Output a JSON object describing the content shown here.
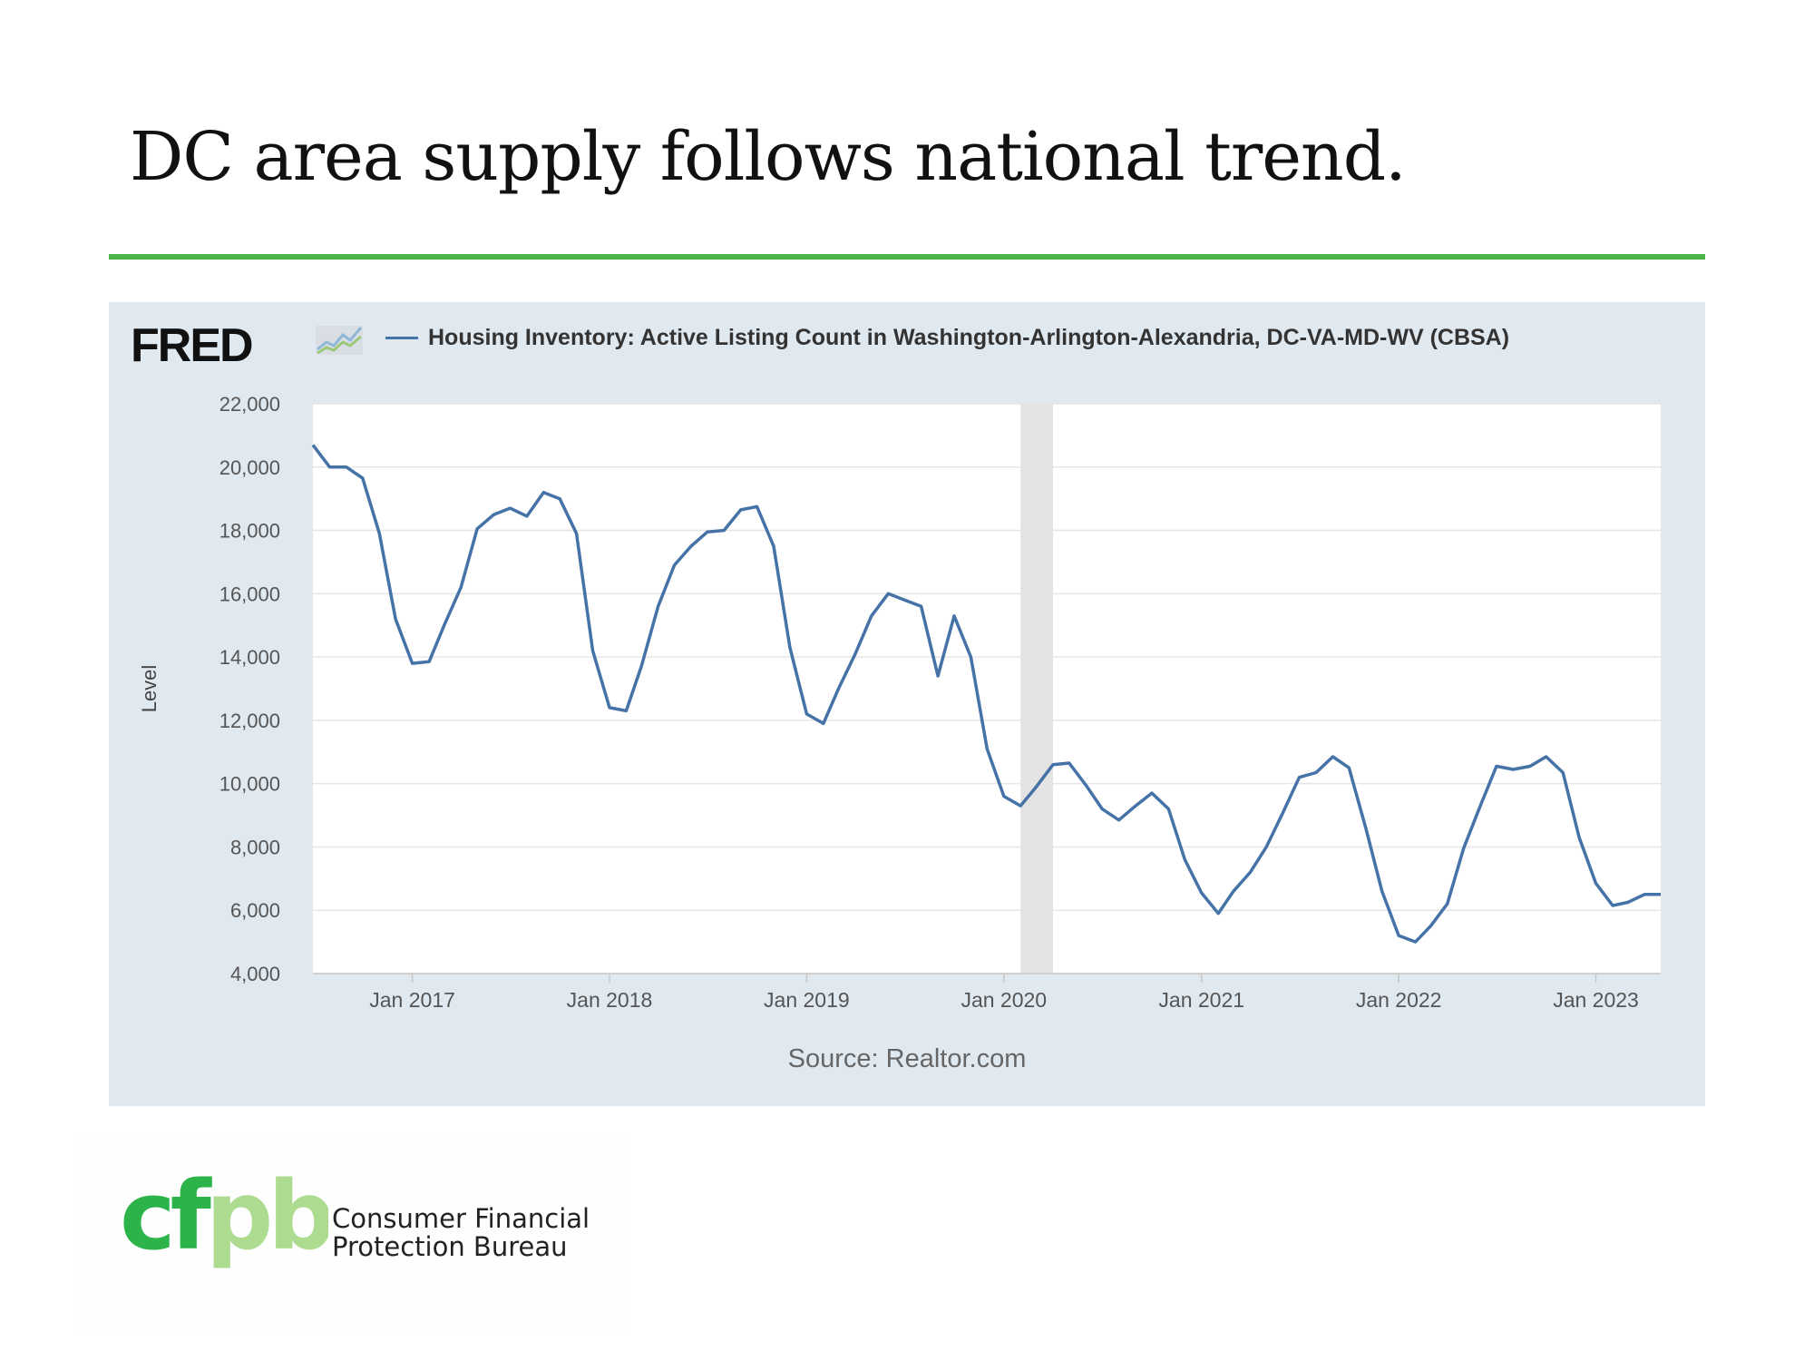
{
  "slide": {
    "title": "DC area supply follows national trend."
  },
  "colors": {
    "rule_green": "#4bb548",
    "series_blue": "#4572a7",
    "recession_gray": "#e3e3e3",
    "cfpb_green_dark": "#2cb34a",
    "cfpb_green_light": "#addc91"
  },
  "fred": {
    "logo_text": "FRED",
    "logo_icon": "fred-chart-icon",
    "legend_text": "Housing Inventory: Active Listing Count in Washington-Arlington-Alexandria, DC-VA-MD-WV (CBSA)",
    "source_text": "Source: Realtor.com"
  },
  "chart_data": {
    "type": "line",
    "title": "",
    "xlabel": "",
    "ylabel": "Level",
    "ylim": [
      4000,
      22000
    ],
    "yticks": [
      4000,
      6000,
      8000,
      10000,
      12000,
      14000,
      16000,
      18000,
      20000,
      22000
    ],
    "ytick_labels": [
      "4,000",
      "6,000",
      "8,000",
      "10,000",
      "12,000",
      "14,000",
      "16,000",
      "18,000",
      "20,000",
      "22,000"
    ],
    "xlim": [
      "2016-07-01",
      "2023-05-01"
    ],
    "xticks": [
      "2017-01-01",
      "2018-01-01",
      "2019-01-01",
      "2020-01-01",
      "2021-01-01",
      "2022-01-01",
      "2023-01-01"
    ],
    "xtick_labels": [
      "Jan 2017",
      "Jan 2018",
      "Jan 2019",
      "Jan 2020",
      "Jan 2021",
      "Jan 2022",
      "Jan 2023"
    ],
    "grid": true,
    "legend": "top",
    "shaded_regions": [
      {
        "start": "2020-02-01",
        "end": "2020-04-01"
      }
    ],
    "series": [
      {
        "name": "Housing Inventory: Active Listing Count in Washington-Arlington-Alexandria, DC-VA-MD-WV (CBSA)",
        "x": [
          "2016-07-01",
          "2016-08-01",
          "2016-09-01",
          "2016-10-01",
          "2016-11-01",
          "2016-12-01",
          "2017-01-01",
          "2017-02-01",
          "2017-03-01",
          "2017-04-01",
          "2017-05-01",
          "2017-06-01",
          "2017-07-01",
          "2017-08-01",
          "2017-09-01",
          "2017-10-01",
          "2017-11-01",
          "2017-12-01",
          "2018-01-01",
          "2018-02-01",
          "2018-03-01",
          "2018-04-01",
          "2018-05-01",
          "2018-06-01",
          "2018-07-01",
          "2018-08-01",
          "2018-09-01",
          "2018-10-01",
          "2018-11-01",
          "2018-12-01",
          "2019-01-01",
          "2019-02-01",
          "2019-03-01",
          "2019-04-01",
          "2019-05-01",
          "2019-06-01",
          "2019-07-01",
          "2019-08-01",
          "2019-09-01",
          "2019-10-01",
          "2019-11-01",
          "2019-12-01",
          "2020-01-01",
          "2020-02-01",
          "2020-03-01",
          "2020-04-01",
          "2020-05-01",
          "2020-06-01",
          "2020-07-01",
          "2020-08-01",
          "2020-09-01",
          "2020-10-01",
          "2020-11-01",
          "2020-12-01",
          "2021-01-01",
          "2021-02-01",
          "2021-03-01",
          "2021-04-01",
          "2021-05-01",
          "2021-06-01",
          "2021-07-01",
          "2021-08-01",
          "2021-09-01",
          "2021-10-01",
          "2021-11-01",
          "2021-12-01",
          "2022-01-01",
          "2022-02-01",
          "2022-03-01",
          "2022-04-01",
          "2022-05-01",
          "2022-06-01",
          "2022-07-01",
          "2022-08-01",
          "2022-09-01",
          "2022-10-01",
          "2022-11-01",
          "2022-12-01",
          "2023-01-01",
          "2023-02-01",
          "2023-03-01",
          "2023-04-01",
          "2023-05-01"
        ],
        "values": [
          20700,
          20000,
          20000,
          19650,
          17900,
          15200,
          13800,
          13850,
          15000,
          16200,
          18050,
          18500,
          18700,
          18450,
          19200,
          19000,
          17900,
          14200,
          12400,
          12300,
          13700,
          15600,
          16900,
          17500,
          17950,
          18000,
          18650,
          18750,
          17500,
          14300,
          12200,
          11900,
          13000,
          14100,
          15300,
          16000,
          15800,
          15600,
          13400,
          15300,
          14000,
          11100,
          9600,
          9300,
          9900,
          10600,
          10650,
          9950,
          9200,
          8850,
          9300,
          9700,
          9200,
          7600,
          6550,
          5900,
          6600,
          7200,
          8000,
          9100,
          10200,
          10350,
          10850,
          10500,
          8600,
          6600,
          5200,
          5000,
          5500,
          6200,
          7950,
          9300,
          10550,
          10450,
          10550,
          10850,
          10350,
          8300,
          6850,
          6150,
          6250,
          6500,
          6500
        ]
      }
    ]
  },
  "cfpb": {
    "logo_text": "cfpb",
    "name_line1": "Consumer Financial",
    "name_line2": "Protection Bureau"
  }
}
